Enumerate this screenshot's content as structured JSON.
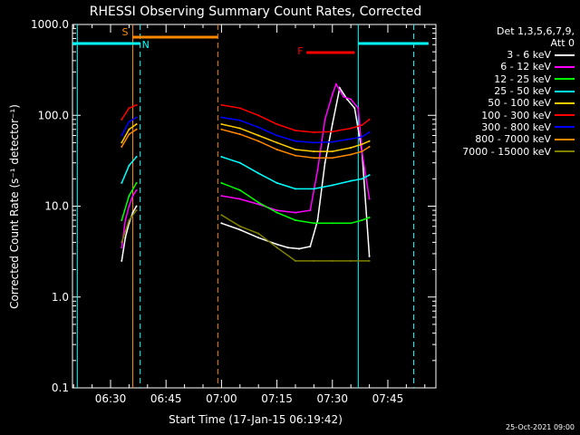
{
  "chart_data": {
    "type": "line",
    "title": "RHESSI Observing Summary Count Rates, Corrected",
    "ylabel": "Corrected Count Rate (s⁻¹ detector⁻¹)",
    "xlabel": "Start Time (17-Jan-15 06:19:42)",
    "y_scale": "log",
    "ylim": [
      0.1,
      1000
    ],
    "xlim": [
      "06:19:42",
      "07:58:00"
    ],
    "y_ticks": [
      "0.1",
      "1.0",
      "10.0",
      "100.0",
      "1000.0"
    ],
    "x_ticks": [
      "06:30",
      "06:45",
      "07:00",
      "07:15",
      "07:30",
      "07:45"
    ],
    "detector_note": [
      "Det 1,3,5,6,7,9,",
      "Att 0"
    ],
    "stamp": "25-Oct-2021 09:00",
    "series": [
      {
        "name": "3 - 6 keV",
        "color": "#ffffff",
        "x": [
          "06:33",
          "06:34",
          "06:35",
          "06:36",
          "06:37",
          "07:00",
          "07:05",
          "07:10",
          "07:15",
          "07:18",
          "07:21",
          "07:24",
          "07:26",
          "07:28",
          "07:30",
          "07:32",
          "07:34",
          "07:36",
          "07:38",
          "07:40"
        ],
        "y": [
          2.5,
          4.5,
          6.5,
          8.5,
          10,
          6.5,
          5.5,
          4.5,
          3.8,
          3.5,
          3.4,
          3.6,
          7,
          30,
          80,
          200,
          150,
          120,
          40,
          2.8
        ]
      },
      {
        "name": "6 - 12 keV",
        "color": "#ff00ff",
        "x": [
          "06:33",
          "06:34",
          "06:35",
          "06:36",
          "06:37",
          "07:00",
          "07:05",
          "07:10",
          "07:15",
          "07:20",
          "07:24",
          "07:26",
          "07:28",
          "07:30",
          "07:31",
          "07:33",
          "07:35",
          "07:37",
          "07:38",
          "07:40"
        ],
        "y": [
          3.5,
          7,
          10,
          13,
          15,
          13,
          12,
          10.5,
          9,
          8.5,
          9,
          25,
          90,
          170,
          220,
          160,
          150,
          120,
          40,
          12
        ]
      },
      {
        "name": "12 - 25 keV",
        "color": "#00ff00",
        "x": [
          "06:33",
          "06:35",
          "06:37",
          "07:00",
          "07:05",
          "07:10",
          "07:15",
          "07:20",
          "07:25",
          "07:30",
          "07:35",
          "07:38",
          "07:40"
        ],
        "y": [
          7,
          13,
          18,
          18,
          15,
          11,
          8.5,
          7,
          6.5,
          6.5,
          6.5,
          7,
          7.5
        ]
      },
      {
        "name": "25 - 50 keV",
        "color": "#00ffff",
        "x": [
          "06:33",
          "06:35",
          "06:37",
          "07:00",
          "07:05",
          "07:10",
          "07:15",
          "07:20",
          "07:25",
          "07:30",
          "07:35",
          "07:38",
          "07:40"
        ],
        "y": [
          18,
          28,
          35,
          35,
          30,
          23,
          18,
          15.5,
          15.5,
          17,
          19,
          20,
          22
        ]
      },
      {
        "name": "50 - 100 keV",
        "color": "#ffcc00",
        "x": [
          "06:33",
          "06:35",
          "06:37",
          "07:00",
          "07:05",
          "07:10",
          "07:15",
          "07:20",
          "07:25",
          "07:30",
          "07:35",
          "07:38",
          "07:40"
        ],
        "y": [
          50,
          70,
          80,
          80,
          72,
          60,
          50,
          42,
          40,
          40,
          44,
          48,
          52
        ]
      },
      {
        "name": "100 - 300 keV",
        "color": "#ff0000",
        "x": [
          "06:33",
          "06:35",
          "06:37",
          "07:00",
          "07:05",
          "07:10",
          "07:15",
          "07:20",
          "07:25",
          "07:30",
          "07:35",
          "07:38",
          "07:40"
        ],
        "y": [
          90,
          120,
          130,
          130,
          120,
          100,
          80,
          68,
          65,
          66,
          72,
          78,
          90
        ]
      },
      {
        "name": "300 - 800 keV",
        "color": "#0000ff",
        "x": [
          "06:33",
          "06:35",
          "06:37",
          "07:00",
          "07:05",
          "07:10",
          "07:15",
          "07:20",
          "07:25",
          "07:30",
          "07:35",
          "07:38",
          "07:40"
        ],
        "y": [
          60,
          85,
          95,
          95,
          88,
          74,
          60,
          52,
          50,
          51,
          55,
          58,
          65
        ]
      },
      {
        "name": "800 - 7000 keV",
        "color": "#ff8800",
        "x": [
          "06:33",
          "06:35",
          "06:37",
          "07:00",
          "07:05",
          "07:10",
          "07:15",
          "07:20",
          "07:25",
          "07:30",
          "07:35",
          "07:38",
          "07:40"
        ],
        "y": [
          45,
          62,
          70,
          70,
          62,
          52,
          42,
          36,
          34,
          34,
          37,
          40,
          45
        ]
      },
      {
        "name": "7000 - 15000 keV",
        "color": "#808000",
        "x": [
          "06:33",
          "06:35",
          "06:37",
          "07:00",
          "07:05",
          "07:10",
          "07:15",
          "07:20",
          "07:25",
          "07:30",
          "07:35",
          "07:40"
        ],
        "y": [
          4,
          7,
          9,
          8,
          6,
          5,
          3.5,
          2.5,
          2.5,
          2.5,
          2.5,
          2.5
        ]
      }
    ],
    "bars": [
      {
        "label": "S",
        "color": "#ff8800",
        "start": "06:36",
        "end": "06:59"
      },
      {
        "label": "N",
        "color": "#00ffff",
        "start": "06:19:42",
        "end": "06:38"
      },
      {
        "label": "F",
        "color": "#ff0000",
        "start": "07:23",
        "end": "07:36"
      },
      {
        "label": "",
        "color": "#00ffff",
        "start": "07:37",
        "end": "07:56"
      }
    ],
    "vlines": [
      {
        "t": "06:21",
        "color": "#00ffff",
        "style": "solid"
      },
      {
        "t": "06:36",
        "color": "#ff8800",
        "style": "solid"
      },
      {
        "t": "06:38",
        "color": "#00ffff",
        "style": "dash"
      },
      {
        "t": "06:59",
        "color": "#ff8800",
        "style": "dash"
      },
      {
        "t": "07:37",
        "color": "#00ffff",
        "style": "solid"
      },
      {
        "t": "07:52",
        "color": "#00ffff",
        "style": "dash"
      }
    ],
    "grid": false,
    "legend_position": "right"
  }
}
